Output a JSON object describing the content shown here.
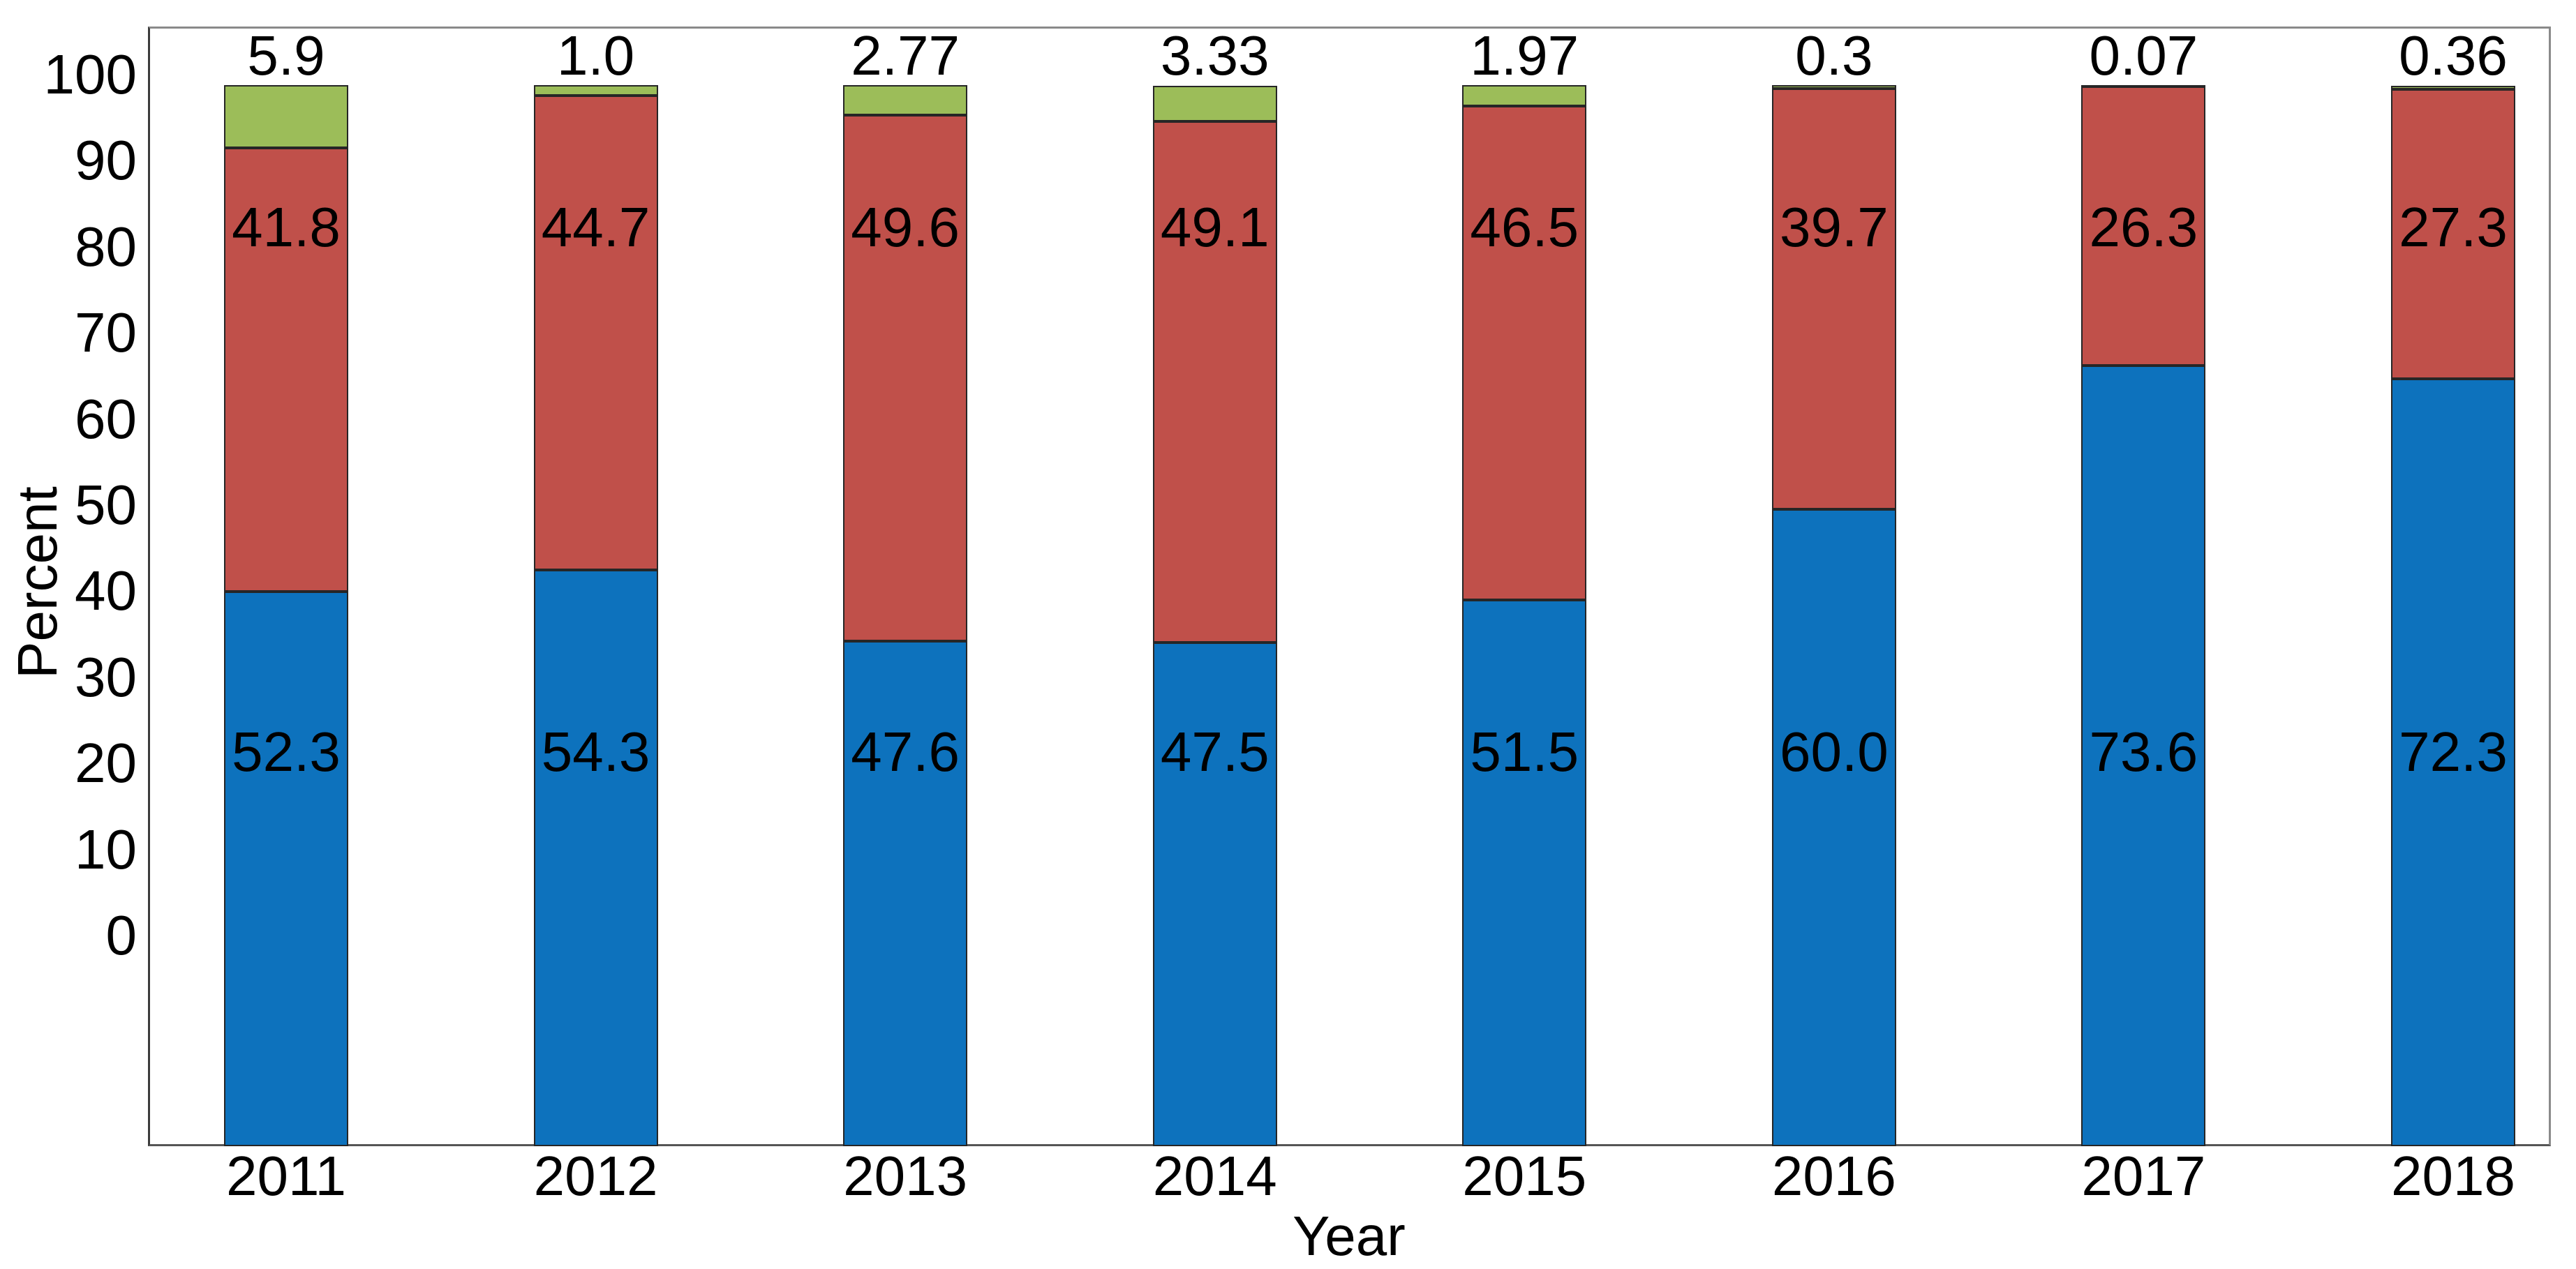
{
  "colors": {
    "blue": "#0D72BD",
    "red": "#C0504A",
    "green": "#9CBD59",
    "segment_outline": "#262626",
    "frame_top": "#8A8A8A",
    "frame_right": "#8A8A8A",
    "frame_bottom": "#555555",
    "frame_left": "#3C3C3C",
    "text": "#000000",
    "background": "#FFFFFF"
  },
  "chart_data": {
    "type": "bar",
    "stacked": true,
    "title": "",
    "xlabel": "Year",
    "ylabel": "Percent",
    "categories": [
      "2011",
      "2012",
      "2013",
      "2014",
      "2015",
      "2016",
      "2017",
      "2018"
    ],
    "series": [
      {
        "name": "blue-bottom-segment",
        "color_key": "blue",
        "values": [
          52.3,
          54.3,
          47.6,
          47.5,
          51.5,
          60.0,
          73.6,
          72.3
        ],
        "labels": [
          "52.3",
          "54.3",
          "47.6",
          "47.5",
          "51.5",
          "60.0",
          "73.6",
          "72.3"
        ],
        "label_placement": "inside-bar-lower"
      },
      {
        "name": "red-middle-segment",
        "color_key": "red",
        "values": [
          41.8,
          44.7,
          49.6,
          49.1,
          46.5,
          39.7,
          26.3,
          27.3
        ],
        "labels": [
          "41.8",
          "44.7",
          "49.6",
          "49.1",
          "46.5",
          "39.7",
          "26.3",
          "27.3"
        ],
        "label_placement": "inside-bar-upper"
      },
      {
        "name": "green-top-segment",
        "color_key": "green",
        "values": [
          5.9,
          1.0,
          2.77,
          3.33,
          1.97,
          0.3,
          0.07,
          0.36
        ],
        "labels": [
          "5.9",
          "1.0",
          "2.77",
          "3.33",
          "1.97",
          "0.3",
          "0.07",
          "0.36"
        ],
        "label_placement": "above-bar"
      }
    ],
    "y_ticks": [
      100,
      90,
      80,
      70,
      60,
      50,
      40,
      30,
      20,
      10,
      0
    ],
    "y_axis_range_note": "tick labels 100-0 span upper part of plot; bars are anchored at the plot floor below the 0 tick",
    "grid": false,
    "legend": null
  }
}
